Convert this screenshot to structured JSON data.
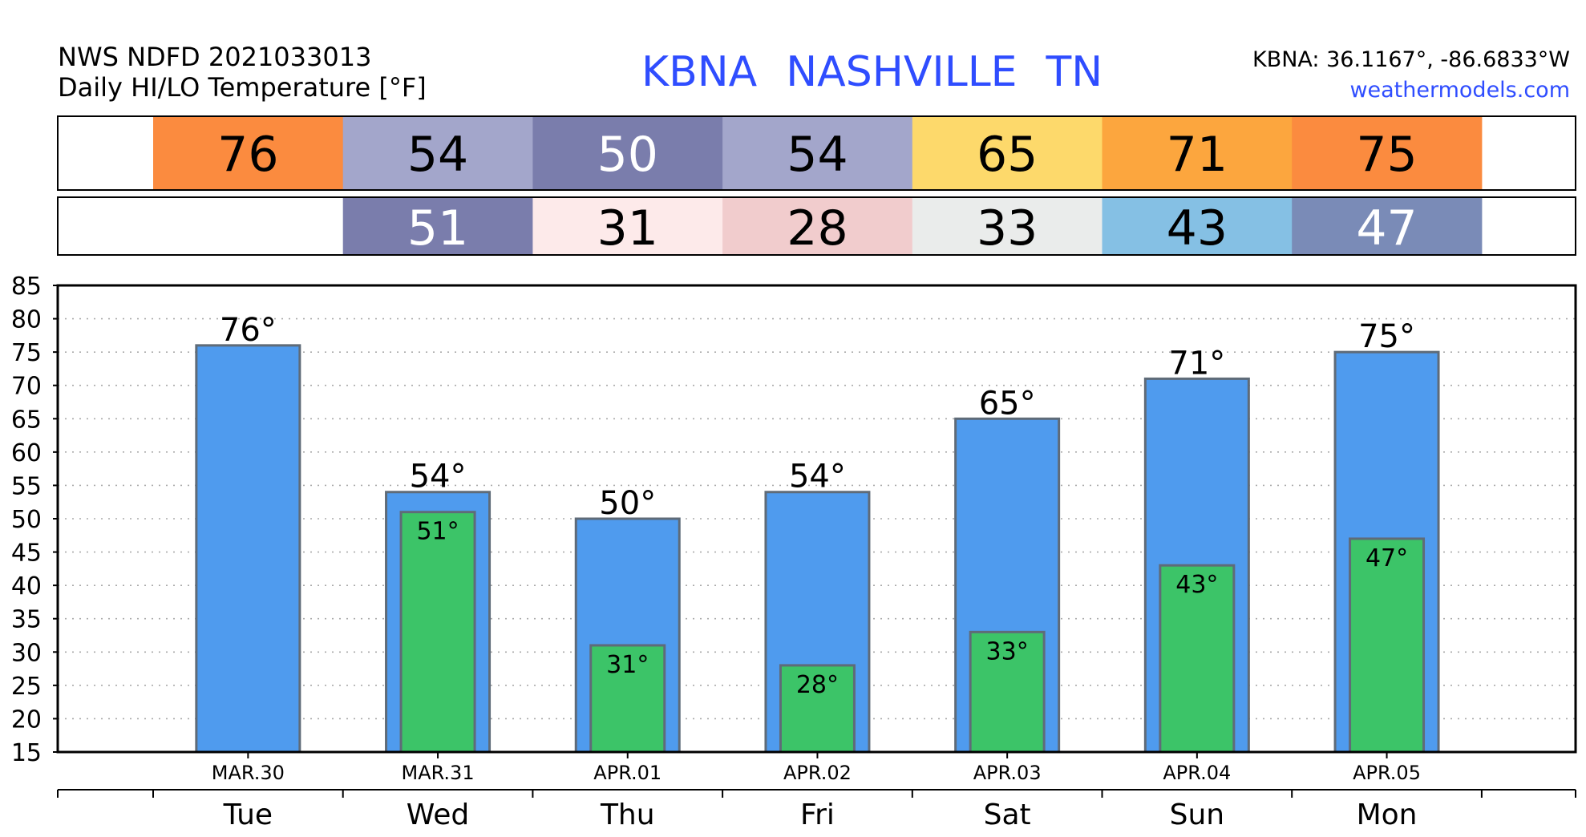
{
  "header": {
    "model_line": "NWS NDFD 2021033013",
    "product_line": "Daily HI/LO Temperature [°F]",
    "station_id": "KBNA",
    "station_name": "NASHVILLE",
    "station_state": "TN",
    "coords": "KBNA: 36.1167°, -86.6833°W",
    "site": "weathermodels.com"
  },
  "chart_data": {
    "type": "bar",
    "categories": [
      "Tue",
      "Wed",
      "Thu",
      "Fri",
      "Sat",
      "Sun",
      "Mon"
    ],
    "dates": [
      "MAR.30",
      "MAR.31",
      "APR.01",
      "APR.02",
      "APR.03",
      "APR.04",
      "APR.05"
    ],
    "series": [
      {
        "values": [
          76,
          54,
          50,
          54,
          65,
          71,
          75
        ],
        "color": "#4f9bee"
      },
      {
        "values": [
          null,
          51,
          31,
          28,
          33,
          43,
          47
        ],
        "color": "#3cc468"
      }
    ],
    "high_row": [
      "76",
      "54",
      "50",
      "54",
      "65",
      "71",
      "75"
    ],
    "high_colors": [
      "#fb8b3f",
      "#a3a6cb",
      "#7a7dac",
      "#a3a6cb",
      "#fdd96b",
      "#fca63e",
      "#fb8b3f"
    ],
    "high_text_colors": [
      "#000000",
      "#000000",
      "#ffffff",
      "#000000",
      "#000000",
      "#000000",
      "#000000"
    ],
    "low_row": [
      "",
      "51",
      "31",
      "28",
      "33",
      "43",
      "47"
    ],
    "low_colors": [
      "#ffffff",
      "#7a7dac",
      "#fdeaea",
      "#f1cccd",
      "#eaeceb",
      "#85c0e4",
      "#7a8bb7"
    ],
    "low_text_colors": [
      "#000000",
      "#ffffff",
      "#000000",
      "#000000",
      "#000000",
      "#000000",
      "#ffffff"
    ],
    "value_labels_high": [
      "76°",
      "54°",
      "50°",
      "54°",
      "65°",
      "71°",
      "75°"
    ],
    "value_labels_low": [
      "",
      "51°",
      "31°",
      "28°",
      "33°",
      "43°",
      "47°"
    ],
    "y_ticks": [
      "85",
      "80",
      "75",
      "70",
      "65",
      "60",
      "55",
      "50",
      "45",
      "40",
      "35",
      "30",
      "25",
      "20",
      "15"
    ],
    "ylim": [
      15,
      85
    ],
    "grid": true
  }
}
